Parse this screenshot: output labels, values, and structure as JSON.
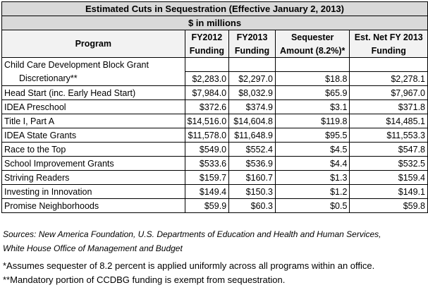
{
  "title": "Estimated Cuts in Sequestration (Effective January 2, 2013)",
  "subtitle": "$ in millions",
  "headers": {
    "program": "Program",
    "fy2012_a": "FY2012",
    "fy2012_b": "Funding",
    "fy2013_a": "FY2013",
    "fy2013_b": "Funding",
    "seq_a": "Sequester",
    "seq_b": "Amount (8.2%)*",
    "net_a": "Est. Net FY 2013",
    "net_b": "Funding"
  },
  "rows": [
    {
      "program": "Child Care Development Block Grant",
      "fy2012": "",
      "fy2013": "",
      "seq": "",
      "net": ""
    },
    {
      "program": "Discretionary**",
      "fy2012": "$2,283.0",
      "fy2013": "$2,297.0",
      "seq": "$18.8",
      "net": "$2,278.1"
    },
    {
      "program": "Head Start (inc. Early Head Start)",
      "fy2012": "$7,984.0",
      "fy2013": "$8,032.9",
      "seq": "$65.9",
      "net": "$7,967.0"
    },
    {
      "program": "IDEA Preschool",
      "fy2012": "$372.6",
      "fy2013": "$374.9",
      "seq": "$3.1",
      "net": "$371.8"
    },
    {
      "program": "Title I, Part A",
      "fy2012": "$14,516.0",
      "fy2013": "$14,604.8",
      "seq": "$119.8",
      "net": "$14,485.1"
    },
    {
      "program": "IDEA State Grants",
      "fy2012": "$11,578.0",
      "fy2013": "$11,648.9",
      "seq": "$95.5",
      "net": "$11,553.3"
    },
    {
      "program": "Race to the Top",
      "fy2012": "$549.0",
      "fy2013": "$552.4",
      "seq": "$4.5",
      "net": "$547.8"
    },
    {
      "program": "School Improvement Grants",
      "fy2012": "$533.6",
      "fy2013": "$536.9",
      "seq": "$4.4",
      "net": "$532.5"
    },
    {
      "program": "Striving Readers",
      "fy2012": "$159.7",
      "fy2013": "$160.7",
      "seq": "$1.3",
      "net": "$159.4"
    },
    {
      "program": "Investing in Innovation",
      "fy2012": "$149.4",
      "fy2013": "$150.3",
      "seq": "$1.2",
      "net": "$149.1"
    },
    {
      "program": "Promise Neighborhoods",
      "fy2012": "$59.9",
      "fy2013": "$60.3",
      "seq": "$0.5",
      "net": "$59.8"
    }
  ],
  "sources_line1": "Sources: New America Foundation, U.S. Departments of Education and Health and Human Services,",
  "sources_line2": "White House Office of Management and Budget",
  "note1": "*Assumes sequester of 8.2 percent is applied uniformly across all programs within an office.",
  "note2": "**Mandatory portion of CCDBG funding is exempt from sequestration."
}
